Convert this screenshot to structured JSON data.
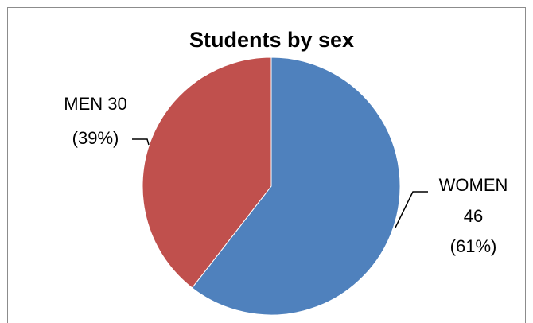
{
  "chart_data": {
    "type": "pie",
    "title": "Students by sex",
    "slices": [
      {
        "label": "WOMEN",
        "value": 46,
        "percent": "61%",
        "color": "#4f81bd"
      },
      {
        "label": "MEN",
        "value": 30,
        "percent": "39%",
        "color": "#c0504d"
      }
    ],
    "labels": {
      "women_line1": "WOMEN",
      "women_line2": "46",
      "women_line3": "(61%)",
      "men_line1": "MEN 30",
      "men_line2": "(39%)"
    },
    "start_angle_deg": 0,
    "direction": "clockwise",
    "legend": "none"
  }
}
